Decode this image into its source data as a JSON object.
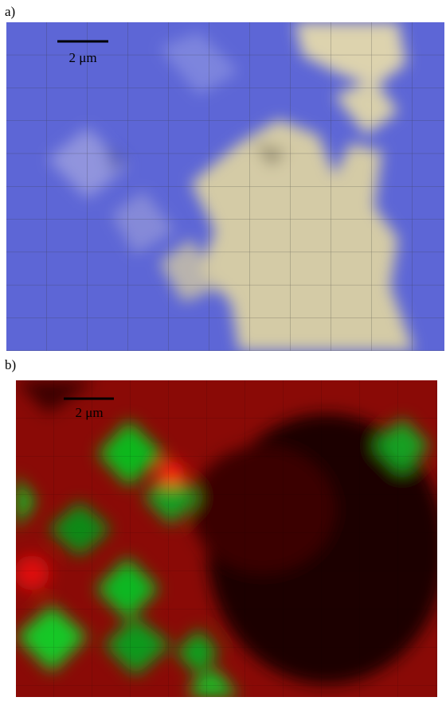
{
  "panels": [
    {
      "label": "a)",
      "scale_bar": "2 μm"
    },
    {
      "label": "b)",
      "scale_bar": "2 μm"
    }
  ]
}
